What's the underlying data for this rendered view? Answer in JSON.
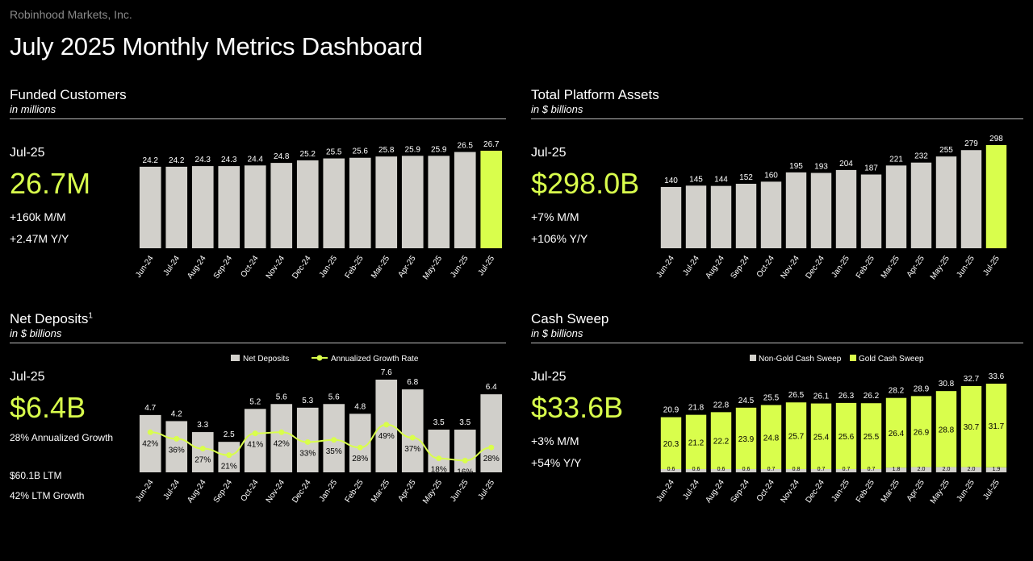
{
  "company": "Robinhood Markets, Inc.",
  "title": "July 2025 Monthly Metrics Dashboard",
  "colors": {
    "accent": "#d9fe4c",
    "bar": "#d2d0cb",
    "background": "#000000"
  },
  "months": [
    "Jun-24",
    "Jul-24",
    "Aug-24",
    "Sep-24",
    "Oct-24",
    "Nov-24",
    "Dec-24",
    "Jan-25",
    "Feb-25",
    "Mar-25",
    "Apr-25",
    "May-25",
    "Jun-25",
    "Jul-25"
  ],
  "funded": {
    "title": "Funded Customers",
    "subtitle": "in millions",
    "period": "Jul-25",
    "value": "26.7M",
    "line1": "+160k M/M",
    "line2": "+2.47M Y/Y"
  },
  "assets": {
    "title": "Total Platform Assets",
    "subtitle": "in $ billions",
    "period": "Jul-25",
    "value": "$298.0B",
    "line1": "+7% M/M",
    "line2": "+106% Y/Y"
  },
  "deposits": {
    "title": "Net Deposits",
    "footnote": "1",
    "subtitle": "in $ billions",
    "period": "Jul-25",
    "value": "$6.4B",
    "line1": "28% Annualized Growth",
    "line2": "$60.1B LTM",
    "line3": "42% LTM Growth"
  },
  "sweep": {
    "title": "Cash Sweep",
    "subtitle": "in $ billions",
    "period": "Jul-25",
    "value": "$33.6B",
    "line1": "+3% M/M",
    "line2": "+54% Y/Y"
  },
  "chart_data": [
    {
      "id": "funded",
      "type": "bar",
      "title": "Funded Customers",
      "ylabel": "in millions",
      "categories": [
        "Jun-24",
        "Jul-24",
        "Aug-24",
        "Sep-24",
        "Oct-24",
        "Nov-24",
        "Dec-24",
        "Jan-25",
        "Feb-25",
        "Mar-25",
        "Apr-25",
        "May-25",
        "Jun-25",
        "Jul-25"
      ],
      "values": [
        24.2,
        24.2,
        24.3,
        24.3,
        24.4,
        24.8,
        25.2,
        25.5,
        25.6,
        25.8,
        25.9,
        25.9,
        26.5,
        26.7
      ],
      "labels": [
        "24.2",
        "24.2",
        "24.3",
        "24.3",
        "24.4",
        "24.8",
        "25.2",
        "25.5",
        "25.6",
        "25.8",
        "25.9",
        "25.9",
        "26.5",
        "26.7"
      ],
      "ylim": [
        15,
        26.7
      ]
    },
    {
      "id": "assets",
      "type": "bar",
      "title": "Total Platform Assets",
      "ylabel": "in $ billions",
      "categories": [
        "Jun-24",
        "Jul-24",
        "Aug-24",
        "Sep-24",
        "Oct-24",
        "Nov-24",
        "Dec-24",
        "Jan-25",
        "Feb-25",
        "Mar-25",
        "Apr-25",
        "May-25",
        "Jun-25",
        "Jul-25"
      ],
      "values": [
        140,
        145,
        144,
        152,
        160,
        195,
        193,
        204,
        187,
        221,
        232,
        255,
        279,
        298
      ],
      "labels": [
        "140",
        "145",
        "144",
        "152",
        "160",
        "195",
        "193",
        "204",
        "187",
        "221",
        "232",
        "255",
        "279",
        "298"
      ],
      "ylim": [
        0,
        298
      ]
    },
    {
      "id": "deposits",
      "type": "bar",
      "title": "Net Deposits",
      "ylabel": "in $ billions",
      "categories": [
        "Jun-24",
        "Jul-24",
        "Aug-24",
        "Sep-24",
        "Oct-24",
        "Nov-24",
        "Dec-24",
        "Jan-25",
        "Feb-25",
        "Mar-25",
        "Apr-25",
        "May-25",
        "Jun-25",
        "Jul-25"
      ],
      "legend": [
        "Net Deposits",
        "Annualized Growth Rate"
      ],
      "values": [
        4.7,
        4.2,
        3.3,
        2.5,
        5.2,
        5.6,
        5.3,
        5.6,
        4.8,
        7.6,
        6.8,
        3.5,
        3.5,
        6.4
      ],
      "labels": [
        "4.7",
        "4.2",
        "3.3",
        "2.5",
        "5.2",
        "5.6",
        "5.3",
        "5.6",
        "4.8",
        "7.6",
        "6.8",
        "3.5",
        "3.5",
        "6.4"
      ],
      "growth": [
        42,
        36,
        27,
        21,
        41,
        42,
        33,
        35,
        28,
        49,
        37,
        18,
        16,
        28
      ],
      "growth_labels": [
        "42%",
        "36%",
        "27%",
        "21%",
        "41%",
        "42%",
        "33%",
        "35%",
        "28%",
        "49%",
        "37%",
        "18%",
        "16%",
        "28%"
      ],
      "ylim": [
        0,
        7.6
      ]
    },
    {
      "id": "sweep",
      "type": "bar",
      "title": "Cash Sweep",
      "ylabel": "in $ billions",
      "categories": [
        "Jun-24",
        "Jul-24",
        "Aug-24",
        "Sep-24",
        "Oct-24",
        "Nov-24",
        "Dec-24",
        "Jan-25",
        "Feb-25",
        "Mar-25",
        "Apr-25",
        "May-25",
        "Jun-25",
        "Jul-25"
      ],
      "legend": [
        "Non-Gold Cash Sweep",
        "Gold Cash Sweep"
      ],
      "series": [
        {
          "name": "Non-Gold Cash Sweep",
          "values": [
            0.6,
            0.6,
            0.6,
            0.6,
            0.7,
            0.8,
            0.7,
            0.7,
            0.7,
            1.8,
            2.0,
            2.0,
            2.0,
            1.9
          ],
          "labels": [
            "0.6",
            "0.6",
            "0.6",
            "0.6",
            "0.7",
            "0.8",
            "0.7",
            "0.7",
            "0.7",
            "1.8",
            "2.0",
            "2.0",
            "2.0",
            "1.9"
          ]
        },
        {
          "name": "Gold Cash Sweep",
          "values": [
            20.3,
            21.2,
            22.2,
            23.9,
            24.8,
            25.7,
            25.4,
            25.6,
            25.5,
            26.4,
            26.9,
            28.8,
            30.7,
            31.7
          ],
          "labels": [
            "20.3",
            "21.2",
            "22.2",
            "23.9",
            "24.8",
            "25.7",
            "25.4",
            "25.6",
            "25.5",
            "26.4",
            "26.9",
            "28.8",
            "30.7",
            "31.7"
          ]
        }
      ],
      "totals": [
        20.9,
        21.8,
        22.8,
        24.5,
        25.5,
        26.5,
        26.1,
        26.3,
        26.2,
        28.2,
        28.9,
        30.8,
        32.7,
        33.6
      ],
      "total_labels": [
        "20.9",
        "21.8",
        "22.8",
        "24.5",
        "25.5",
        "26.5",
        "26.1",
        "26.3",
        "26.2",
        "28.2",
        "28.9",
        "30.8",
        "32.7",
        "33.6"
      ],
      "ylim": [
        0,
        33.6
      ]
    }
  ]
}
